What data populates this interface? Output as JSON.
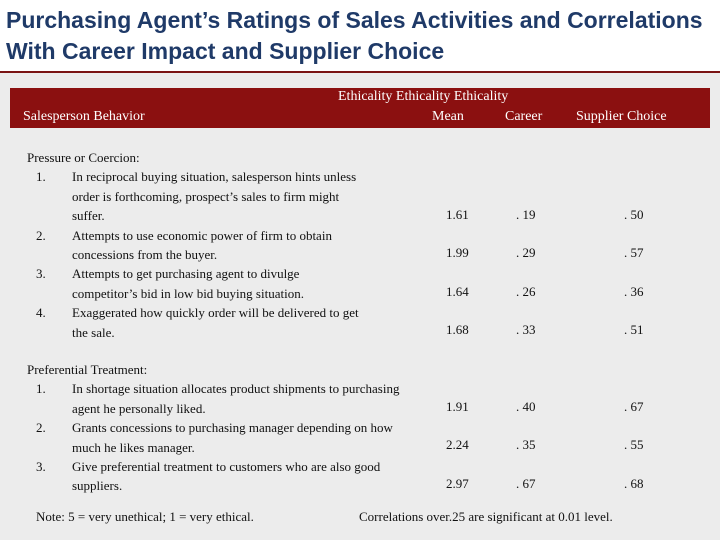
{
  "title": "Purchasing Agent’s Ratings of Sales Activities and Correlations With Career Impact and Supplier Choice",
  "header": {
    "behavior": "Salesperson Behavior",
    "top_row": "Ethicality  Ethicality    Ethicality",
    "mean": "Mean",
    "career": "Career",
    "supplier": "Supplier Choice"
  },
  "sections": [
    {
      "heading": "Pressure or Coercion:",
      "items": [
        {
          "num": "1.",
          "text": "In reciprocal buying situation, salesperson hints unless order is forthcoming, prospect’s sales to firm might suffer.",
          "mean": "1.61",
          "career": ". 19",
          "supplier": ". 50"
        },
        {
          "num": "2.",
          "text": "Attempts to use economic power of firm to obtain concessions from the buyer.",
          "mean": "1.99",
          "career": ". 29",
          "supplier": ". 57"
        },
        {
          "num": "3.",
          "text": "Attempts to get purchasing agent to divulge competitor’s bid in low bid buying situation.",
          "mean": "1.64",
          "career": ". 26",
          "supplier": ". 36"
        },
        {
          "num": "4.",
          "text": "Exaggerated how quickly order will be delivered to get the sale.",
          "mean": "1.68",
          "career": ". 33",
          "supplier": ". 51"
        }
      ]
    },
    {
      "heading": "Preferential Treatment:",
      "items": [
        {
          "num": "1.",
          "text": "In shortage situation allocates product shipments to purchasing agent he personally liked.",
          "mean": "1.91",
          "career": ". 40",
          "supplier": ". 67"
        },
        {
          "num": "2.",
          "text": "Grants concessions to purchasing manager depending on how much he likes manager.",
          "mean": "2.24",
          "career": ". 35",
          "supplier": ". 55"
        },
        {
          "num": "3.",
          "text": "Give preferential treatment to customers who are also good suppliers.",
          "mean": "2.97",
          "career": ". 67",
          "supplier": ". 68"
        }
      ]
    }
  ],
  "footer": {
    "note": "Note: 5 = very unethical; 1 = very ethical.",
    "significance": "Correlations over.25 are significant at 0.01 level."
  }
}
